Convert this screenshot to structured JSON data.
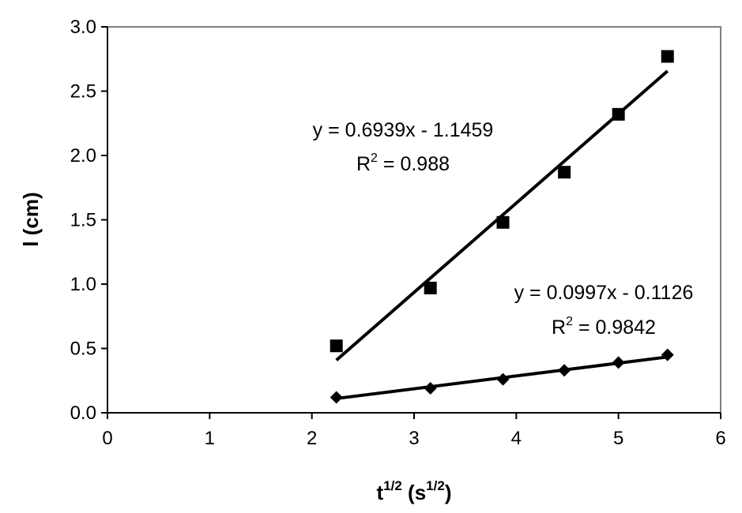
{
  "chart_data": {
    "type": "scatter",
    "xlabel": {
      "base": "t",
      "sup": "1/2",
      "unit_open": " (s",
      "unit_sup": "1/2",
      "unit_close": ")"
    },
    "ylabel": "l (cm)",
    "xlim": [
      0,
      6
    ],
    "ylim": [
      0,
      3.0
    ],
    "x_ticks": [
      "0",
      "1",
      "2",
      "3",
      "4",
      "5",
      "6"
    ],
    "y_ticks": [
      "0.0",
      "0.5",
      "1.0",
      "1.5",
      "2.0",
      "2.5",
      "3.0"
    ],
    "grid": false,
    "series": [
      {
        "marker": "square",
        "x": [
          2.24,
          3.16,
          3.87,
          4.47,
          5.0,
          5.48
        ],
        "y": [
          0.52,
          0.97,
          1.48,
          1.87,
          2.32,
          2.77
        ],
        "trendline": {
          "slope": 0.6939,
          "intercept": -1.1459,
          "x_range": [
            2.24,
            5.48
          ]
        },
        "equation": "y = 0.6939x - 1.1459",
        "r2": {
          "prefix": "R",
          "sup": "2",
          "value": " = 0.988"
        }
      },
      {
        "marker": "diamond",
        "x": [
          2.24,
          3.16,
          3.87,
          4.47,
          5.0,
          5.48
        ],
        "y": [
          0.12,
          0.19,
          0.26,
          0.33,
          0.39,
          0.45
        ],
        "trendline": {
          "slope": 0.0997,
          "intercept": -0.1126,
          "x_range": [
            2.24,
            5.48
          ]
        },
        "equation": "y = 0.0997x - 0.1126",
        "r2": {
          "prefix": "R",
          "sup": "2",
          "value": " = 0.9842"
        }
      }
    ],
    "colors": {
      "marks": "#000000",
      "frame": "#808080",
      "axis": "#000000"
    }
  }
}
